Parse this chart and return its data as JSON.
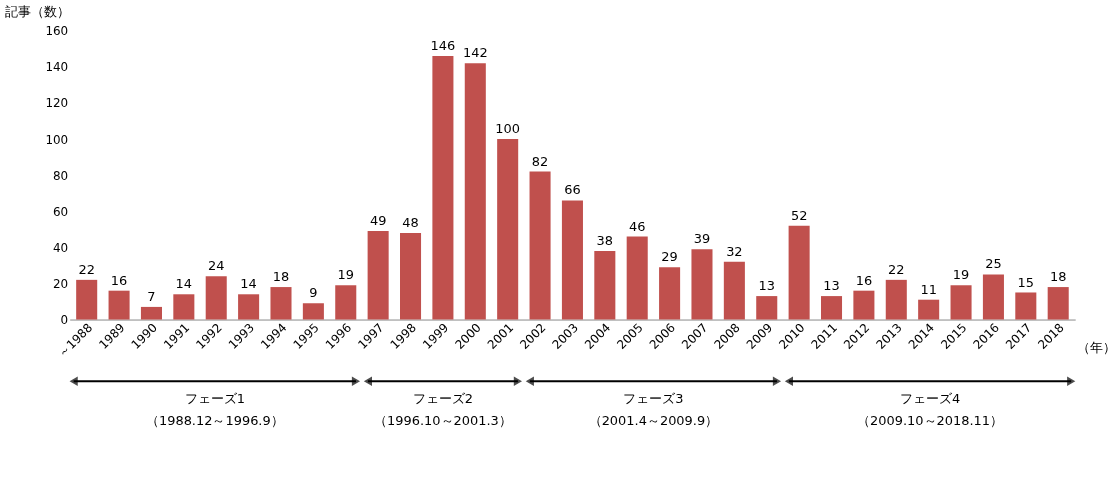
{
  "chart_data": {
    "type": "bar",
    "ylabel": "記事（数）",
    "xlabel": "（年）",
    "categories": [
      "～1988",
      "1989",
      "1990",
      "1991",
      "1992",
      "1993",
      "1994",
      "1995",
      "1996",
      "1997",
      "1998",
      "1999",
      "2000",
      "2001",
      "2002",
      "2003",
      "2004",
      "2005",
      "2006",
      "2007",
      "2008",
      "2009",
      "2010",
      "2011",
      "2012",
      "2013",
      "2014",
      "2015",
      "2016",
      "2017",
      "2018"
    ],
    "values": [
      22,
      16,
      7,
      14,
      24,
      14,
      18,
      9,
      19,
      49,
      48,
      146,
      142,
      100,
      82,
      66,
      38,
      46,
      29,
      39,
      32,
      13,
      52,
      13,
      16,
      22,
      11,
      19,
      25,
      15,
      18
    ],
    "color": "#c0504d",
    "ylim": [
      0,
      160
    ],
    "yticks": [
      0,
      20,
      40,
      60,
      80,
      100,
      120,
      140,
      160
    ],
    "grid": false,
    "data_labels": true,
    "annotations": [
      "フェーズ1",
      "（1988.12～1996.9）",
      "フェーズ2",
      "（1996.10～2001.3）",
      "フェーズ3",
      "（2001.4～2009.9）",
      "フェーズ4",
      "（2009.10～2018.11）"
    ]
  }
}
